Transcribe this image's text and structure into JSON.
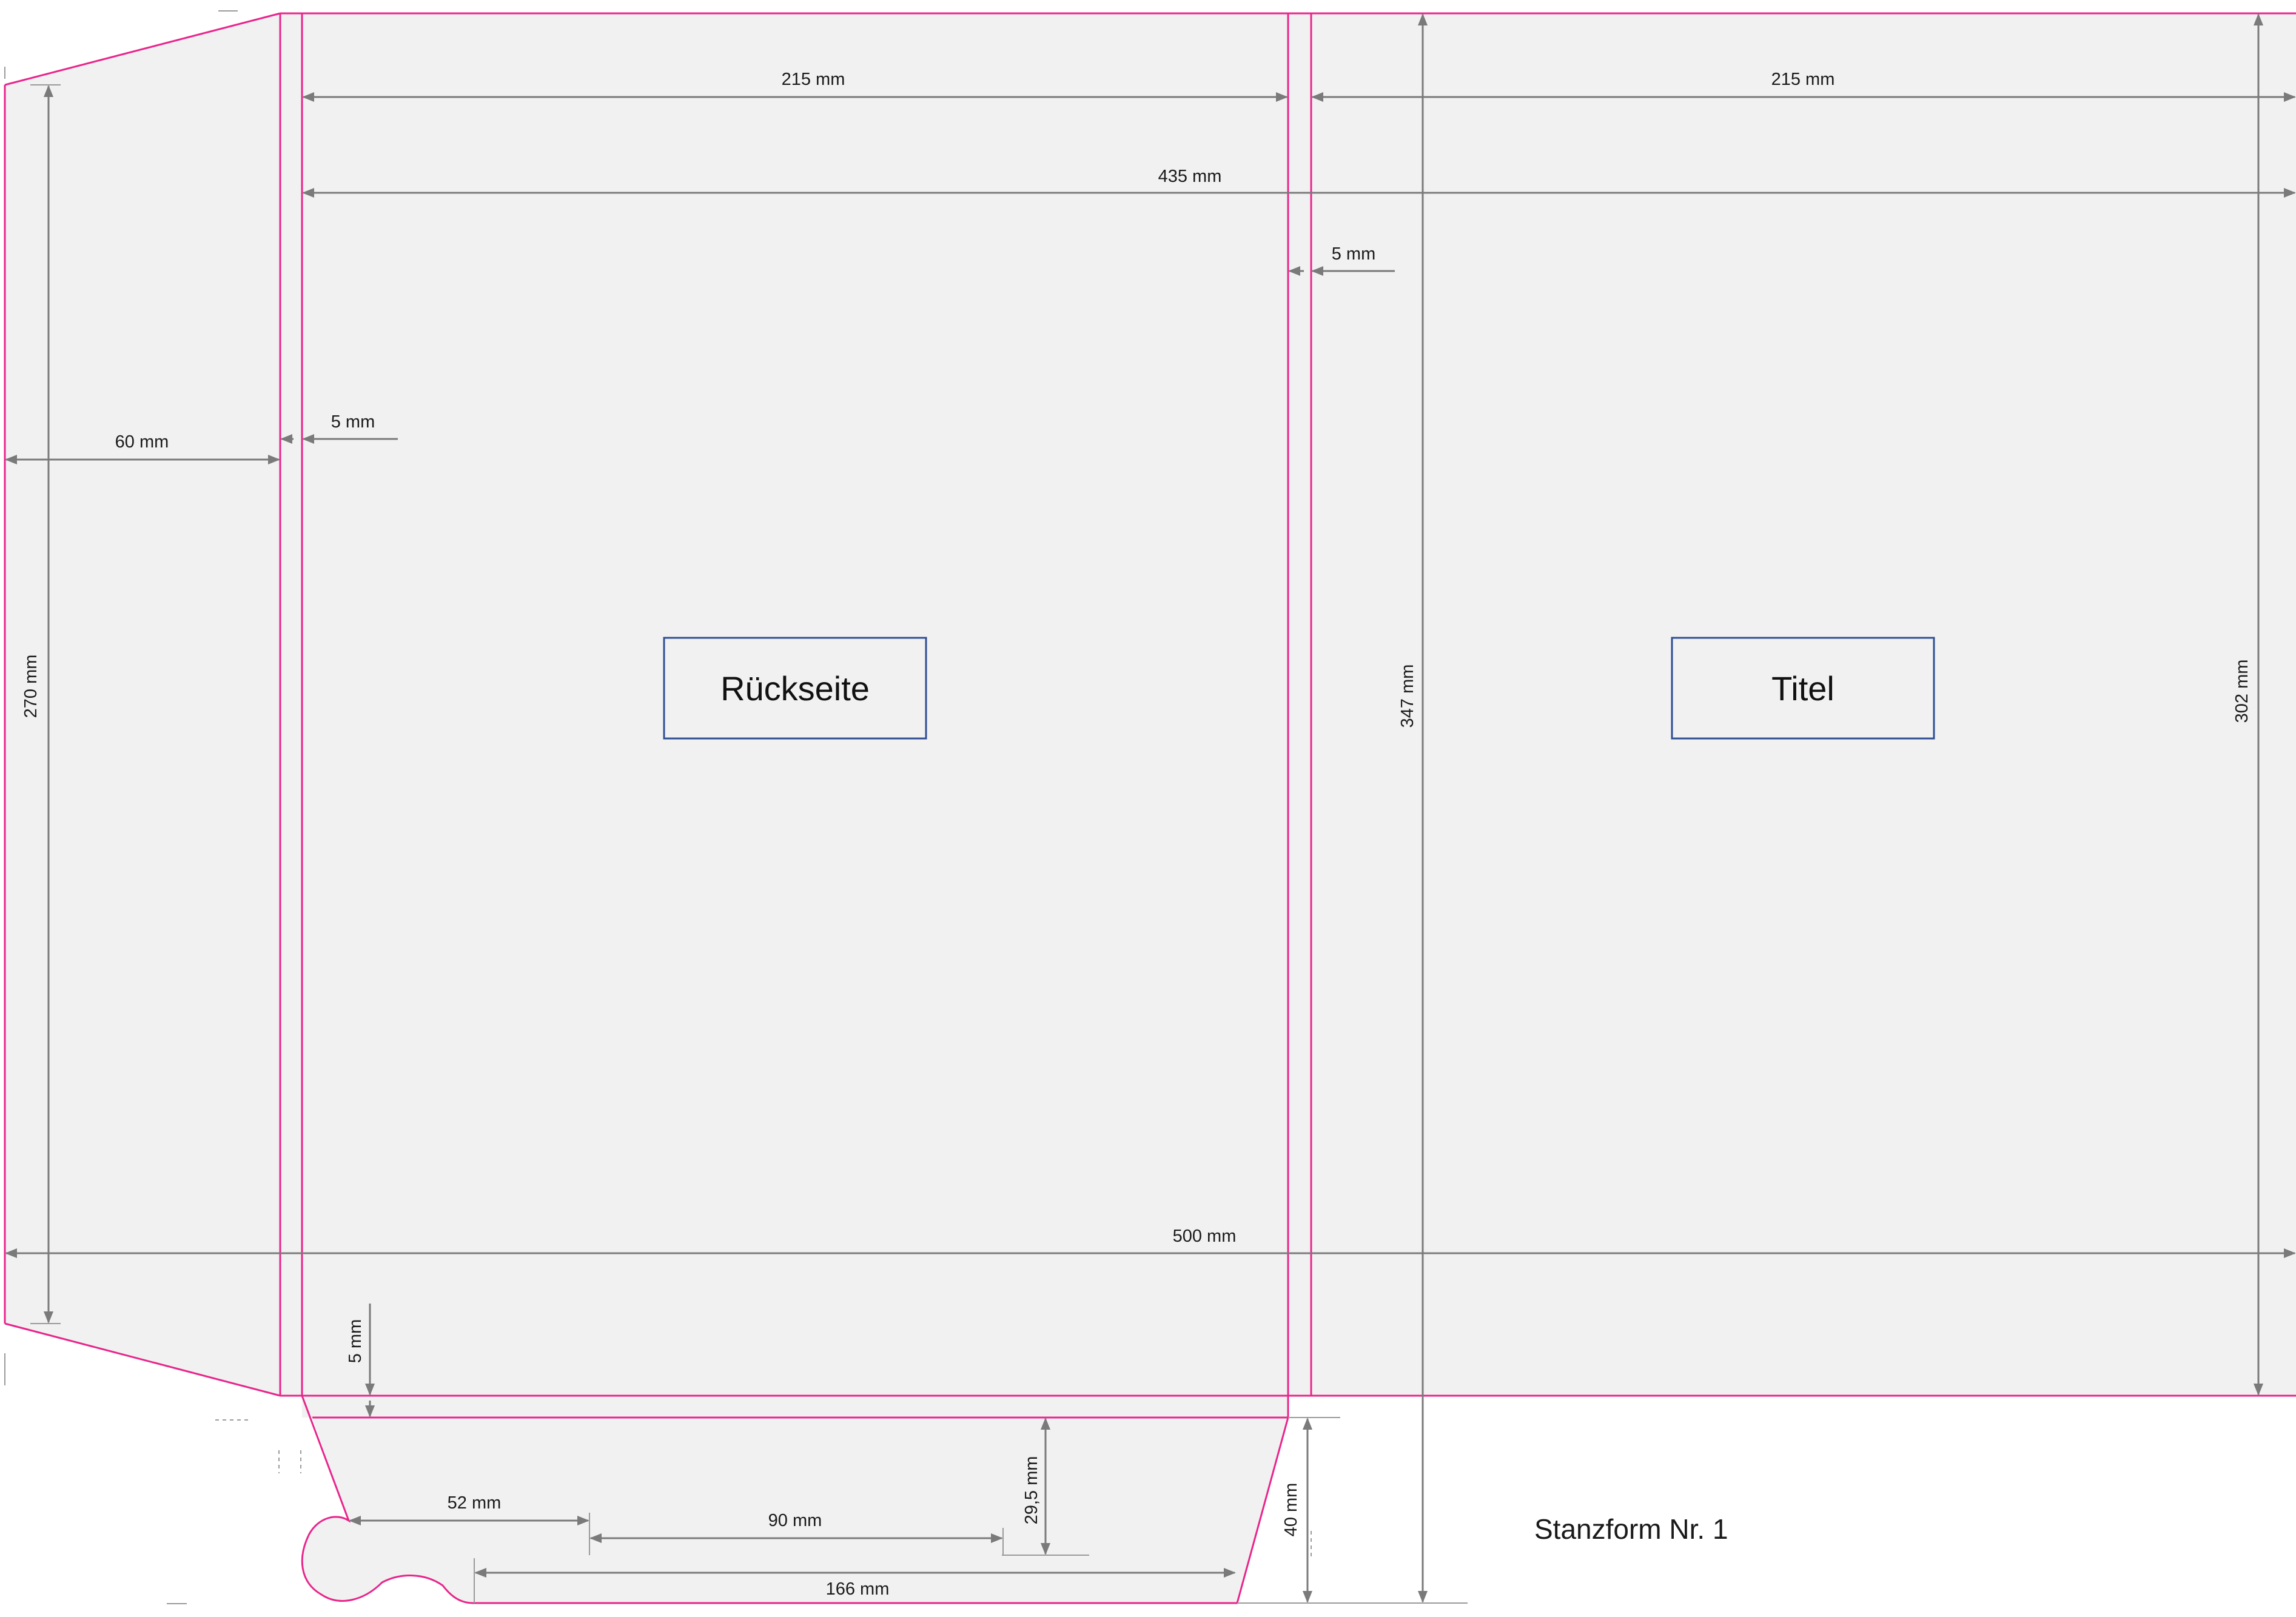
{
  "diagram": {
    "title": "Stanzform Nr. 1",
    "panels": {
      "back_label": "Rückseite",
      "front_label": "Titel"
    },
    "dimensions": {
      "back_width": "215 mm",
      "front_width": "215 mm",
      "total_without_flap": "435 mm",
      "spine_gap": "5 mm",
      "left_flap_width": "60 mm",
      "left_gap": "5 mm",
      "left_flap_height": "270 mm",
      "total_height": "347 mm",
      "panel_height": "302 mm",
      "total_width": "500 mm",
      "bottom_gap": "5 mm",
      "slot_offset": "52 mm",
      "slot_length": "90 mm",
      "pocket_depth": "29,5 mm",
      "pocket_height": "40 mm",
      "pocket_width": "166 mm"
    },
    "colors": {
      "cut_line": "#e8258b",
      "dimension": "#7a7a7a",
      "label_border": "#2f4f94",
      "panel_fill": "#f1f1f2"
    }
  }
}
